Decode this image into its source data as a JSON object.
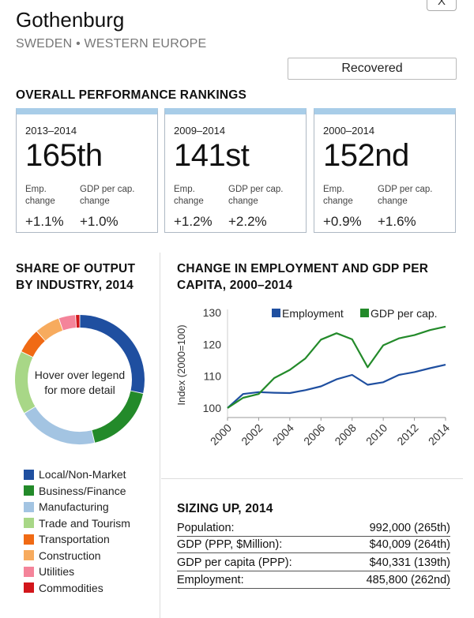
{
  "header": {
    "title": "Gothenburg",
    "subtitle": "SWEDEN • WESTERN EUROPE",
    "status": "Recovered",
    "close_label": "X"
  },
  "rankings": {
    "heading": "OVERALL PERFORMANCE RANKINGS",
    "cards": [
      {
        "period": "2013–2014",
        "rank": "165th",
        "emp_label": "Emp. change",
        "gdp_label": "GDP per cap. change",
        "emp_value": "+1.1%",
        "gdp_value": "+1.0%"
      },
      {
        "period": "2009–2014",
        "rank": "141st",
        "emp_label": "Emp. change",
        "gdp_label": "GDP per cap. change",
        "emp_value": "+1.2%",
        "gdp_value": "+2.2%"
      },
      {
        "period": "2000–2014",
        "rank": "152nd",
        "emp_label": "Emp. change",
        "gdp_label": "GDP per cap. change",
        "emp_value": "+0.9%",
        "gdp_value": "+1.6%"
      }
    ]
  },
  "share": {
    "heading_line1": "SHARE OF OUTPUT",
    "heading_line2": "BY INDUSTRY, 2014",
    "center_line1": "Hover over legend",
    "center_line2": "for more detail"
  },
  "change": {
    "heading_line1": "CHANGE IN EMPLOYMENT AND GDP PER",
    "heading_line2": "CAPITA, 2000–2014"
  },
  "sizing": {
    "heading": "SIZING UP, 2014",
    "rows": [
      {
        "label": "Population:",
        "value": "992,000 (265th)"
      },
      {
        "label": "GDP (PPP, $Million):",
        "value": "$40,009 (264th)"
      },
      {
        "label": "GDP per capita (PPP):",
        "value": "$40,331 (139th)"
      },
      {
        "label": "Employment:",
        "value": "485,800 (262nd)"
      }
    ]
  },
  "chart_data": [
    {
      "type": "pie",
      "title": "SHARE OF OUTPUT BY INDUSTRY, 2014",
      "categories": [
        "Local/Non-Market",
        "Business/Finance",
        "Manufacturing",
        "Trade and Tourism",
        "Transportation",
        "Construction",
        "Utilities",
        "Commodities"
      ],
      "values": [
        27,
        17,
        19,
        15,
        6,
        6,
        4,
        1
      ],
      "colors": [
        "#1f4fa0",
        "#238a2a",
        "#a3c4e2",
        "#a8d787",
        "#f06a14",
        "#f7ab5e",
        "#f4849a",
        "#d2161b"
      ],
      "legend_position": "bottom"
    },
    {
      "type": "line",
      "title": "CHANGE IN EMPLOYMENT AND GDP PER CAPITA, 2000–2014",
      "xlabel": "",
      "ylabel": "Index (2000=100)",
      "x": [
        2000,
        2001,
        2002,
        2003,
        2004,
        2005,
        2006,
        2007,
        2008,
        2009,
        2010,
        2011,
        2012,
        2013,
        2014
      ],
      "xticks": [
        "2000",
        "2002",
        "2004",
        "2006",
        "2008",
        "2010",
        "2012",
        "2014"
      ],
      "yticks": [
        "100",
        "110",
        "120",
        "130"
      ],
      "xlim": [
        2000,
        2014
      ],
      "ylim": [
        97,
        131
      ],
      "grid": false,
      "legend_position": "top",
      "series": [
        {
          "name": "Employment",
          "color": "#1f4fa0",
          "values": [
            100,
            104.4,
            105.0,
            104.8,
            104.7,
            105.6,
            106.8,
            109.0,
            110.4,
            107.3,
            108.1,
            110.4,
            111.3,
            112.5,
            113.6
          ]
        },
        {
          "name": "GDP per cap.",
          "color": "#238a2a",
          "values": [
            100,
            103.2,
            104.4,
            109.4,
            112.0,
            115.6,
            121.5,
            123.5,
            121.6,
            112.8,
            119.7,
            121.9,
            122.9,
            124.5,
            125.6
          ]
        }
      ]
    }
  ]
}
